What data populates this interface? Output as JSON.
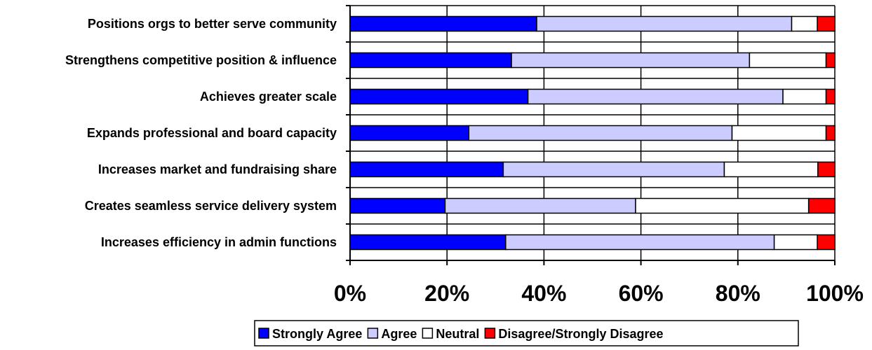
{
  "chart_data": {
    "type": "bar",
    "orientation": "horizontal",
    "stacked": true,
    "percent_stacked": true,
    "categories": [
      "Positions orgs to better serve community",
      "Strengthens competitive position & influence",
      "Achieves greater scale",
      "Expands professional and board capacity",
      "Increases market and fundraising share ",
      "Creates seamless service delivery system",
      "Increases efficiency in admin functions"
    ],
    "series": [
      {
        "name": "Strongly Agree",
        "color": "#0000ff",
        "values": [
          38.5,
          33.3,
          36.7,
          24.5,
          31.6,
          19.6,
          32.1
        ]
      },
      {
        "name": "Agree",
        "color": "#ccccff",
        "values": [
          52.6,
          49.1,
          52.6,
          54.3,
          45.6,
          39.3,
          55.4
        ]
      },
      {
        "name": "Neutral",
        "color": "#ffffff",
        "values": [
          5.3,
          15.8,
          8.9,
          19.4,
          19.3,
          35.7,
          8.9
        ]
      },
      {
        "name": "Disagree/Strongly Disagree",
        "color": "#ff0000",
        "values": [
          3.6,
          1.8,
          1.8,
          1.8,
          3.5,
          5.4,
          3.6
        ]
      }
    ],
    "x_ticks": [
      "0%",
      "20%",
      "40%",
      "60%",
      "80%",
      "100%"
    ],
    "xlim": [
      0,
      100
    ],
    "title": "",
    "xlabel": "",
    "ylabel": "",
    "grid": true,
    "legend_position": "bottom"
  }
}
